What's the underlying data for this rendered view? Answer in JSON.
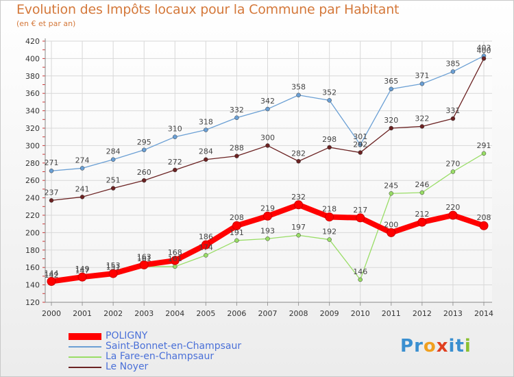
{
  "header": {
    "title": "Evolution des Impôts locaux pour la Commune par Habitant",
    "subtitle": "(en € et par an)"
  },
  "logo": {
    "text": "Proxiti",
    "letters": [
      {
        "ch": "P",
        "color": "#3a8fd0"
      },
      {
        "ch": "r",
        "color": "#3a8fd0"
      },
      {
        "ch": "o",
        "color": "#f0a020"
      },
      {
        "ch": "x",
        "color": "#e04020"
      },
      {
        "ch": "i",
        "color": "#3a8fd0"
      },
      {
        "ch": "t",
        "color": "#3a8fd0"
      },
      {
        "ch": "i",
        "color": "#8ac030"
      }
    ]
  },
  "chart_data": {
    "type": "line",
    "title": "Evolution des Impôts locaux pour la Commune par Habitant",
    "subtitle": "(en € et par an)",
    "xlabel": "",
    "ylabel": "",
    "x": [
      "2000",
      "2001",
      "2002",
      "2003",
      "2004",
      "2005",
      "2006",
      "2007",
      "2008",
      "2009",
      "2010",
      "2011",
      "2012",
      "2013",
      "2014"
    ],
    "ylim": [
      120,
      420
    ],
    "yticks": [
      120,
      140,
      160,
      180,
      200,
      220,
      240,
      260,
      280,
      300,
      320,
      340,
      360,
      380,
      400,
      420
    ],
    "grid": true,
    "legend_position": "bottom-left",
    "series": [
      {
        "name": "POLIGNY",
        "color": "#ff0000",
        "values": [
          144,
          149,
          153,
          163,
          168,
          186,
          208,
          219,
          232,
          218,
          217,
          200,
          212,
          220,
          208
        ],
        "labels": [
          "144",
          "149",
          "153",
          "163",
          "168",
          "186",
          "208",
          "219",
          "232",
          "218",
          "217",
          "200",
          "212",
          "220",
          "208"
        ]
      },
      {
        "name": "Saint-Bonnet-en-Champsaur",
        "color": "#6a9fd4",
        "values": [
          271,
          274,
          284,
          295,
          310,
          318,
          332,
          342,
          358,
          352,
          301,
          365,
          371,
          385,
          403
        ],
        "labels": [
          "271",
          "274",
          "284",
          "295",
          "310",
          "318",
          "332",
          "342",
          "358",
          "352",
          "301",
          "365",
          "371",
          "385",
          "403"
        ]
      },
      {
        "name": "La Fare-en-Champsaur",
        "color": "#99dd66",
        "values": [
          142,
          147,
          151,
          161,
          161,
          174,
          191,
          193,
          197,
          192,
          146,
          245,
          246,
          270,
          291
        ],
        "labels": [
          "142",
          "147",
          "151",
          "161",
          "161",
          "174",
          "191",
          "193",
          "197",
          "192",
          "146",
          "245",
          "246",
          "270",
          "291"
        ]
      },
      {
        "name": "Le Noyer",
        "color": "#6b2222",
        "values": [
          237,
          241,
          251,
          260,
          272,
          284,
          288,
          300,
          282,
          298,
          292,
          320,
          322,
          331,
          400
        ],
        "labels": [
          "237",
          "241",
          "251",
          "260",
          "272",
          "284",
          "288",
          "300",
          "282",
          "298",
          "292",
          "320",
          "322",
          "331",
          "400"
        ]
      }
    ]
  }
}
